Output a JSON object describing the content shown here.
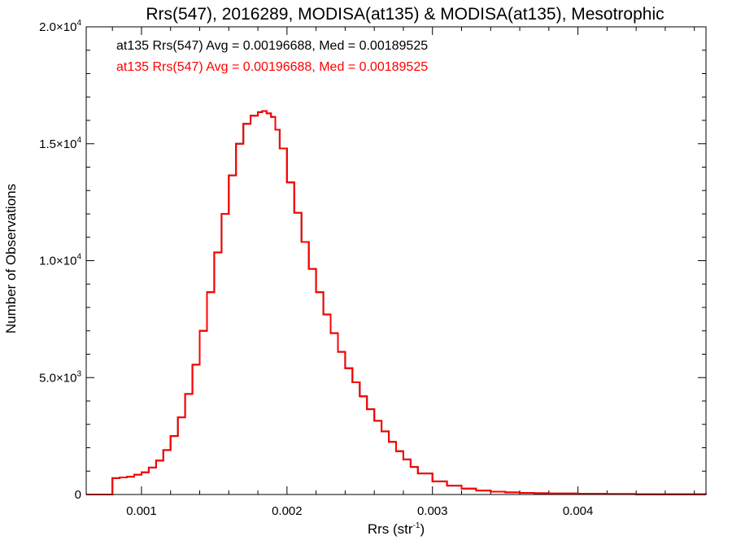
{
  "chart_data": {
    "type": "histogram",
    "title": "Rrs(547), 2016289, MODISA(at135) & MODISA(at135), Mesotrophic",
    "xlabel": "Rrs (str",
    "xlabel_sup": "-1",
    "xlabel_suffix": ")",
    "ylabel": "Number of Observations",
    "xlim": [
      0.00062,
      0.00488
    ],
    "ylim": [
      0,
      20000
    ],
    "x_ticks": [
      0.001,
      0.002,
      0.003,
      0.004
    ],
    "x_tick_labels": [
      "0.001",
      "0.002",
      "0.003",
      "0.004"
    ],
    "y_tick_labels": [
      {
        "value": 0,
        "mant": "0",
        "exp": ""
      },
      {
        "value": 5000,
        "mant": "5.0×10",
        "exp": "3"
      },
      {
        "value": 10000,
        "mant": "1.0×10",
        "exp": "4"
      },
      {
        "value": 15000,
        "mant": "1.5×10",
        "exp": "4"
      },
      {
        "value": 20000,
        "mant": "2.0×10",
        "exp": "4"
      }
    ],
    "annotations": [
      {
        "text": "at135 Rrs(547) Avg = 0.00196688, Med = 0.00189525",
        "color": "#000000"
      },
      {
        "text": "at135 Rrs(547) Avg = 0.00196688, Med = 0.00189525",
        "color": "#ff0000"
      }
    ],
    "series": [
      {
        "color": "#ff0000",
        "underlay_color": "#000000",
        "x": [
          0.00062,
          0.00072,
          0.00078,
          0.0008,
          0.00085,
          0.0009,
          0.00095,
          0.001,
          0.00105,
          0.0011,
          0.00115,
          0.0012,
          0.00125,
          0.0013,
          0.00135,
          0.0014,
          0.00145,
          0.0015,
          0.00155,
          0.0016,
          0.00165,
          0.0017,
          0.00175,
          0.0018,
          0.00183,
          0.00186,
          0.00189,
          0.00192,
          0.00195,
          0.002,
          0.00205,
          0.0021,
          0.00215,
          0.0022,
          0.00225,
          0.0023,
          0.00235,
          0.0024,
          0.00245,
          0.0025,
          0.00255,
          0.0026,
          0.00265,
          0.0027,
          0.00275,
          0.0028,
          0.00285,
          0.0029,
          0.003,
          0.0031,
          0.0032,
          0.0033,
          0.0034,
          0.0035,
          0.0036,
          0.0037,
          0.0038,
          0.004,
          0.0042,
          0.0044,
          0.0046,
          0.00488
        ],
        "y": [
          0,
          0,
          0,
          700,
          730,
          760,
          850,
          950,
          1150,
          1450,
          1900,
          2500,
          3300,
          4300,
          5550,
          7000,
          8650,
          10350,
          12000,
          13650,
          15000,
          15850,
          16200,
          16350,
          16400,
          16300,
          16150,
          15600,
          14800,
          13350,
          12050,
          10800,
          9650,
          8650,
          7700,
          6900,
          6100,
          5400,
          4800,
          4200,
          3650,
          3150,
          2700,
          2250,
          1850,
          1500,
          1180,
          900,
          560,
          380,
          250,
          170,
          120,
          90,
          70,
          55,
          45,
          30,
          20,
          12,
          8,
          5
        ]
      }
    ]
  }
}
